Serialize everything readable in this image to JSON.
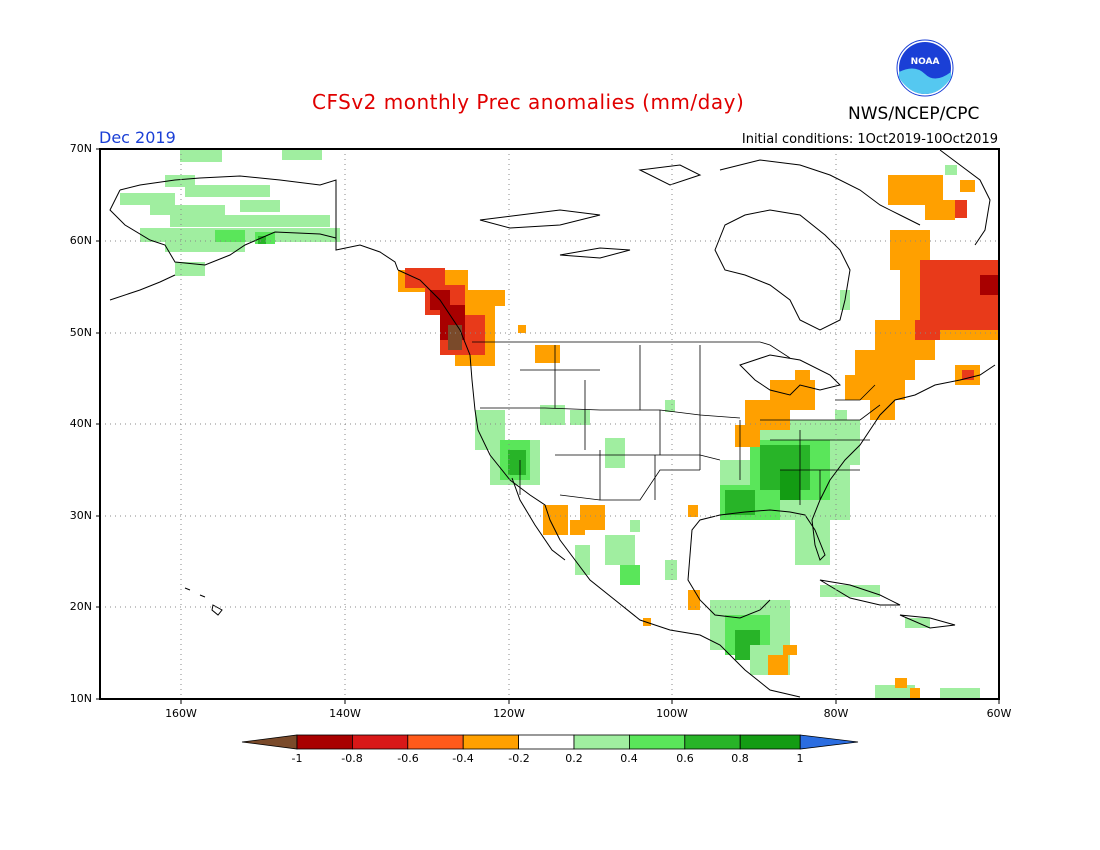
{
  "header": {
    "title": "CFSv2 monthly Prec anomalies (mm/day)",
    "agency": "NWS/NCEP/CPC",
    "logo_text": "NOAA",
    "month": "Dec 2019",
    "initial_conditions": "Initial conditions: 1Oct2019-10Oct2019"
  },
  "axes": {
    "lat_labels": [
      "70N",
      "60N",
      "50N",
      "40N",
      "30N",
      "20N",
      "10N"
    ],
    "lon_labels": [
      "160W",
      "140W",
      "120W",
      "100W",
      "80W",
      "60W"
    ]
  },
  "colorbar": {
    "labels": [
      "-1",
      "-0.8",
      "-0.6",
      "-0.4",
      "-0.2",
      "0.2",
      "0.4",
      "0.6",
      "0.8",
      "1"
    ],
    "colors": [
      "#7a4a2a",
      "#a80000",
      "#d81818",
      "#ff5a1a",
      "#ffa000",
      "#ffffff",
      "#a0eea0",
      "#5ae65a",
      "#28b428",
      "#139c13",
      "#2b6de0"
    ]
  },
  "colors": {
    "dry_strong": "#7a4a2a",
    "dry_red": "#a80000",
    "dry_orange_red": "#e83a1a",
    "dry_orange": "#ffa000",
    "wet_light": "#a0eea0",
    "wet_mid": "#5ae65a",
    "wet_dark": "#28b428"
  }
}
